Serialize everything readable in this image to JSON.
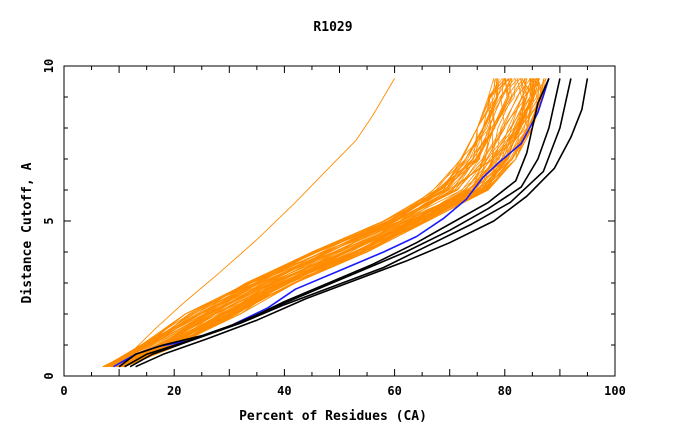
{
  "chart_data": {
    "type": "line",
    "title": "R1029",
    "xlabel": "Percent of Residues (CA)",
    "ylabel": "Distance Cutoff, A",
    "xlim": [
      0,
      100
    ],
    "ylim": [
      0,
      10
    ],
    "xticks": [
      0,
      20,
      40,
      60,
      80,
      100
    ],
    "yticks": [
      0,
      5,
      10
    ],
    "colors": {
      "orange": "#ff8c00",
      "blue": "#1a1aff",
      "black": "#000000",
      "axis": "#000000"
    },
    "outlier_series": [
      {
        "color": "orange",
        "x": [
          9,
          13,
          17,
          22,
          28,
          35,
          42,
          48,
          53,
          56,
          58,
          60
        ],
        "y": [
          0.3,
          0.9,
          1.6,
          2.4,
          3.3,
          4.4,
          5.6,
          6.7,
          7.6,
          8.4,
          9.0,
          9.6
        ]
      }
    ],
    "orange_band": {
      "color": "orange",
      "y": [
        0.3,
        1.0,
        2.0,
        3.0,
        4.0,
        5.0,
        6.0,
        7.0,
        8.0,
        9.0,
        9.6
      ],
      "lower_x": [
        7,
        14,
        22,
        33,
        45,
        58,
        67,
        72,
        75,
        77,
        78
      ],
      "upper_x": [
        11,
        21,
        32,
        42,
        55,
        66,
        77,
        82,
        85,
        87,
        88
      ],
      "count": 70
    },
    "series": [
      {
        "color": "blue",
        "x": [
          9,
          13,
          17,
          23,
          30,
          37,
          42,
          50,
          58,
          64,
          69,
          73,
          76,
          79,
          83,
          86,
          88
        ],
        "y": [
          0.3,
          0.7,
          0.95,
          1.15,
          1.6,
          2.2,
          2.8,
          3.4,
          4.0,
          4.5,
          5.1,
          5.7,
          6.4,
          6.9,
          7.5,
          8.5,
          9.6
        ]
      },
      {
        "color": "black",
        "x": [
          10,
          13,
          18,
          25,
          33,
          40,
          48,
          56,
          64,
          71,
          77,
          82,
          84,
          85,
          86,
          88
        ],
        "y": [
          0.3,
          0.7,
          1.0,
          1.3,
          1.8,
          2.4,
          3.0,
          3.6,
          4.3,
          5.0,
          5.6,
          6.3,
          7.2,
          8.0,
          8.8,
          9.6
        ]
      },
      {
        "color": "black",
        "x": [
          11,
          15,
          22,
          30,
          38,
          46,
          54,
          62,
          70,
          77,
          83,
          86,
          88,
          90
        ],
        "y": [
          0.3,
          0.7,
          1.1,
          1.6,
          2.2,
          2.8,
          3.4,
          4.0,
          4.7,
          5.4,
          6.1,
          7.0,
          8.0,
          9.6
        ]
      },
      {
        "color": "black",
        "x": [
          12,
          16,
          24,
          32,
          40,
          49,
          58,
          66,
          74,
          81,
          87,
          90,
          92
        ],
        "y": [
          0.3,
          0.7,
          1.2,
          1.7,
          2.3,
          2.9,
          3.5,
          4.2,
          4.9,
          5.6,
          6.6,
          8.0,
          9.6
        ]
      },
      {
        "color": "black",
        "x": [
          13,
          18,
          26,
          35,
          44,
          53,
          62,
          70,
          78,
          84,
          89,
          92,
          94,
          95
        ],
        "y": [
          0.3,
          0.7,
          1.2,
          1.8,
          2.5,
          3.1,
          3.7,
          4.3,
          5.0,
          5.8,
          6.7,
          7.7,
          8.6,
          9.6
        ]
      }
    ]
  }
}
